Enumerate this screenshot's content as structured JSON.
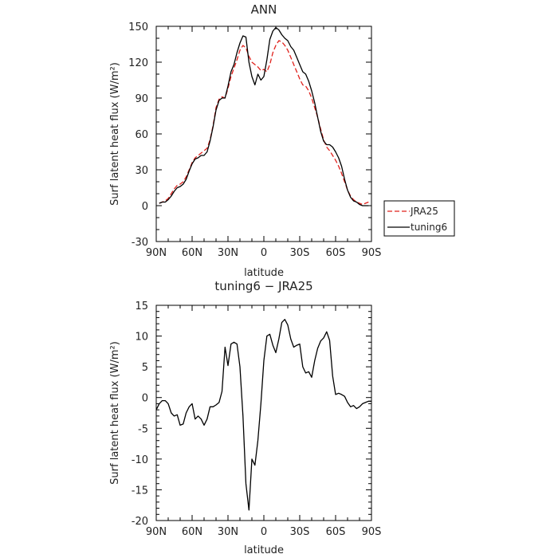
{
  "chart_data": [
    {
      "type": "line",
      "title": "ANN",
      "xlabel": "latitude",
      "ylabel": "Surf latent heat flux (W/m²)",
      "xlim": [
        90,
        -90
      ],
      "ylim": [
        -30,
        150
      ],
      "x_ticks": [
        90,
        60,
        30,
        0,
        -30,
        -60,
        -90
      ],
      "x_tick_labels": [
        "90N",
        "60N",
        "30N",
        "0",
        "30S",
        "60S",
        "90S"
      ],
      "y_ticks": [
        -30,
        0,
        30,
        60,
        90,
        120,
        150
      ],
      "y_tick_labels": [
        "-30",
        "0",
        "30",
        "60",
        "90",
        "120",
        "150"
      ],
      "legend": {
        "placement": "right",
        "entries": [
          "JRA25",
          "tuning6"
        ]
      },
      "grid": false,
      "series": [
        {
          "name": "JRA25",
          "color": "#e0201b",
          "dash": "dashed",
          "x": [
            87.5,
            85,
            82.5,
            80,
            77.5,
            75,
            72.5,
            70,
            67.5,
            65,
            62.5,
            60,
            57.5,
            55,
            52.5,
            50,
            47.5,
            45,
            42.5,
            40,
            37.5,
            35,
            32.5,
            30,
            27.5,
            25,
            22.5,
            20,
            17.5,
            15,
            12.5,
            10,
            7.5,
            5,
            2.5,
            0,
            -2.5,
            -5,
            -7.5,
            -10,
            -12.5,
            -15,
            -17.5,
            -20,
            -22.5,
            -25,
            -27.5,
            -30,
            -32.5,
            -35,
            -37.5,
            -40,
            -42.5,
            -45,
            -47.5,
            -50,
            -52.5,
            -55,
            -57.5,
            -60,
            -62.5,
            -65,
            -67.5,
            -70,
            -72.5,
            -75,
            -77.5,
            -80,
            -82.5,
            -85,
            -87.5
          ],
          "values": [
            2,
            3,
            4,
            6,
            10,
            14,
            17,
            18,
            20,
            24,
            30,
            36,
            40,
            42,
            44,
            46,
            48,
            55,
            67,
            82,
            89,
            91,
            90,
            98,
            108,
            115,
            122,
            130,
            134,
            132,
            125,
            120,
            118,
            116,
            113,
            114,
            112,
            118,
            128,
            134,
            138,
            137,
            134,
            130,
            124,
            118,
            112,
            106,
            101,
            100,
            96,
            90,
            82,
            74,
            64,
            55,
            49,
            46,
            42,
            38,
            33,
            27,
            20,
            13,
            8,
            5,
            3,
            2,
            1,
            2,
            3
          ]
        },
        {
          "name": "tuning6",
          "color": "#000000",
          "dash": "solid",
          "x": [
            87.5,
            85,
            82.5,
            80,
            77.5,
            75,
            72.5,
            70,
            67.5,
            65,
            62.5,
            60,
            57.5,
            55,
            52.5,
            50,
            47.5,
            45,
            42.5,
            40,
            37.5,
            35,
            32.5,
            30,
            27.5,
            25,
            22.5,
            20,
            17.5,
            15,
            12.5,
            10,
            7.5,
            5,
            2.5,
            0,
            -2.5,
            -5,
            -7.5,
            -10,
            -12.5,
            -15,
            -17.5,
            -20,
            -22.5,
            -25,
            -27.5,
            -30,
            -32.5,
            -35,
            -37.5,
            -40,
            -42.5,
            -45,
            -47.5,
            -50,
            -52.5,
            -55,
            -57.5,
            -60,
            -62.5,
            -65,
            -67.5,
            -70,
            -72.5,
            -75,
            -77.5,
            -80,
            -82.5,
            -85,
            -87.5
          ],
          "values": [
            2,
            3,
            3,
            5,
            8,
            12,
            15,
            16,
            18,
            22,
            29,
            35,
            39,
            40,
            42,
            42,
            45,
            54,
            66,
            80,
            88,
            90,
            90,
            100,
            112,
            118,
            128,
            136,
            142,
            141,
            120,
            108,
            101,
            110,
            105,
            108,
            122,
            139,
            146,
            149,
            147,
            143,
            140,
            138,
            133,
            130,
            124,
            118,
            112,
            110,
            104,
            96,
            86,
            74,
            62,
            54,
            51,
            51,
            49,
            45,
            40,
            33,
            22,
            13,
            7,
            4,
            3,
            1,
            0,
            0,
            0
          ]
        }
      ]
    },
    {
      "type": "line",
      "title": "tuning6 − JRA25",
      "xlabel": "latitude",
      "ylabel": "Surf latent heat flux (W/m²)",
      "xlim": [
        90,
        -90
      ],
      "ylim": [
        -20,
        15
      ],
      "x_ticks": [
        90,
        60,
        30,
        0,
        -30,
        -60,
        -90
      ],
      "x_tick_labels": [
        "90N",
        "60N",
        "30N",
        "0",
        "30S",
        "60S",
        "90S"
      ],
      "y_ticks": [
        -20,
        -15,
        -10,
        -5,
        0,
        5,
        10,
        15
      ],
      "y_tick_labels": [
        "-20",
        "-15",
        "-10",
        "-5",
        "0",
        "5",
        "10",
        "15"
      ],
      "grid": false,
      "series": [
        {
          "color": "#000000",
          "dash": "solid",
          "x": [
            90,
            87.5,
            85,
            82.5,
            80,
            77.5,
            75,
            72.5,
            70,
            67.5,
            65,
            62.5,
            60,
            57.5,
            55,
            52.5,
            50,
            47.5,
            45,
            42.5,
            40,
            37.5,
            35,
            32.5,
            30,
            27.5,
            25,
            22.5,
            20,
            17.5,
            15,
            12.5,
            10,
            7.5,
            5,
            2.5,
            0,
            -2.5,
            -5,
            -7.5,
            -10,
            -12.5,
            -15,
            -17.5,
            -20,
            -22.5,
            -25,
            -27.5,
            -30,
            -32.5,
            -35,
            -37.5,
            -40,
            -42.5,
            -45,
            -47.5,
            -50,
            -52.5,
            -55,
            -57.5,
            -60,
            -62.5,
            -65,
            -67.5,
            -70,
            -72.5,
            -75,
            -77.5,
            -80,
            -82.5,
            -85,
            -87.5,
            -90
          ],
          "values": [
            -2.0,
            -1.0,
            -0.5,
            -0.5,
            -1.0,
            -2.5,
            -3.0,
            -2.8,
            -4.5,
            -4.3,
            -2.5,
            -1.5,
            -1.0,
            -3.5,
            -3.0,
            -3.5,
            -4.5,
            -3.5,
            -1.5,
            -1.5,
            -1.2,
            -0.8,
            1.0,
            8.2,
            5.2,
            8.7,
            9.0,
            8.7,
            5.0,
            -3.0,
            -14.0,
            -18.3,
            -10.0,
            -11.0,
            -7.0,
            -1.0,
            6.0,
            10.0,
            10.3,
            8.5,
            7.3,
            9.5,
            12.2,
            12.7,
            11.8,
            9.5,
            8.2,
            8.5,
            8.7,
            5.0,
            4.0,
            4.2,
            3.3,
            6.0,
            8.0,
            9.2,
            9.7,
            10.7,
            9.3,
            3.5,
            0.5,
            0.7,
            0.5,
            0.2,
            -0.8,
            -1.5,
            -1.3,
            -1.8,
            -1.5,
            -1.0,
            -0.8,
            -0.6,
            -0.6
          ]
        }
      ]
    }
  ]
}
